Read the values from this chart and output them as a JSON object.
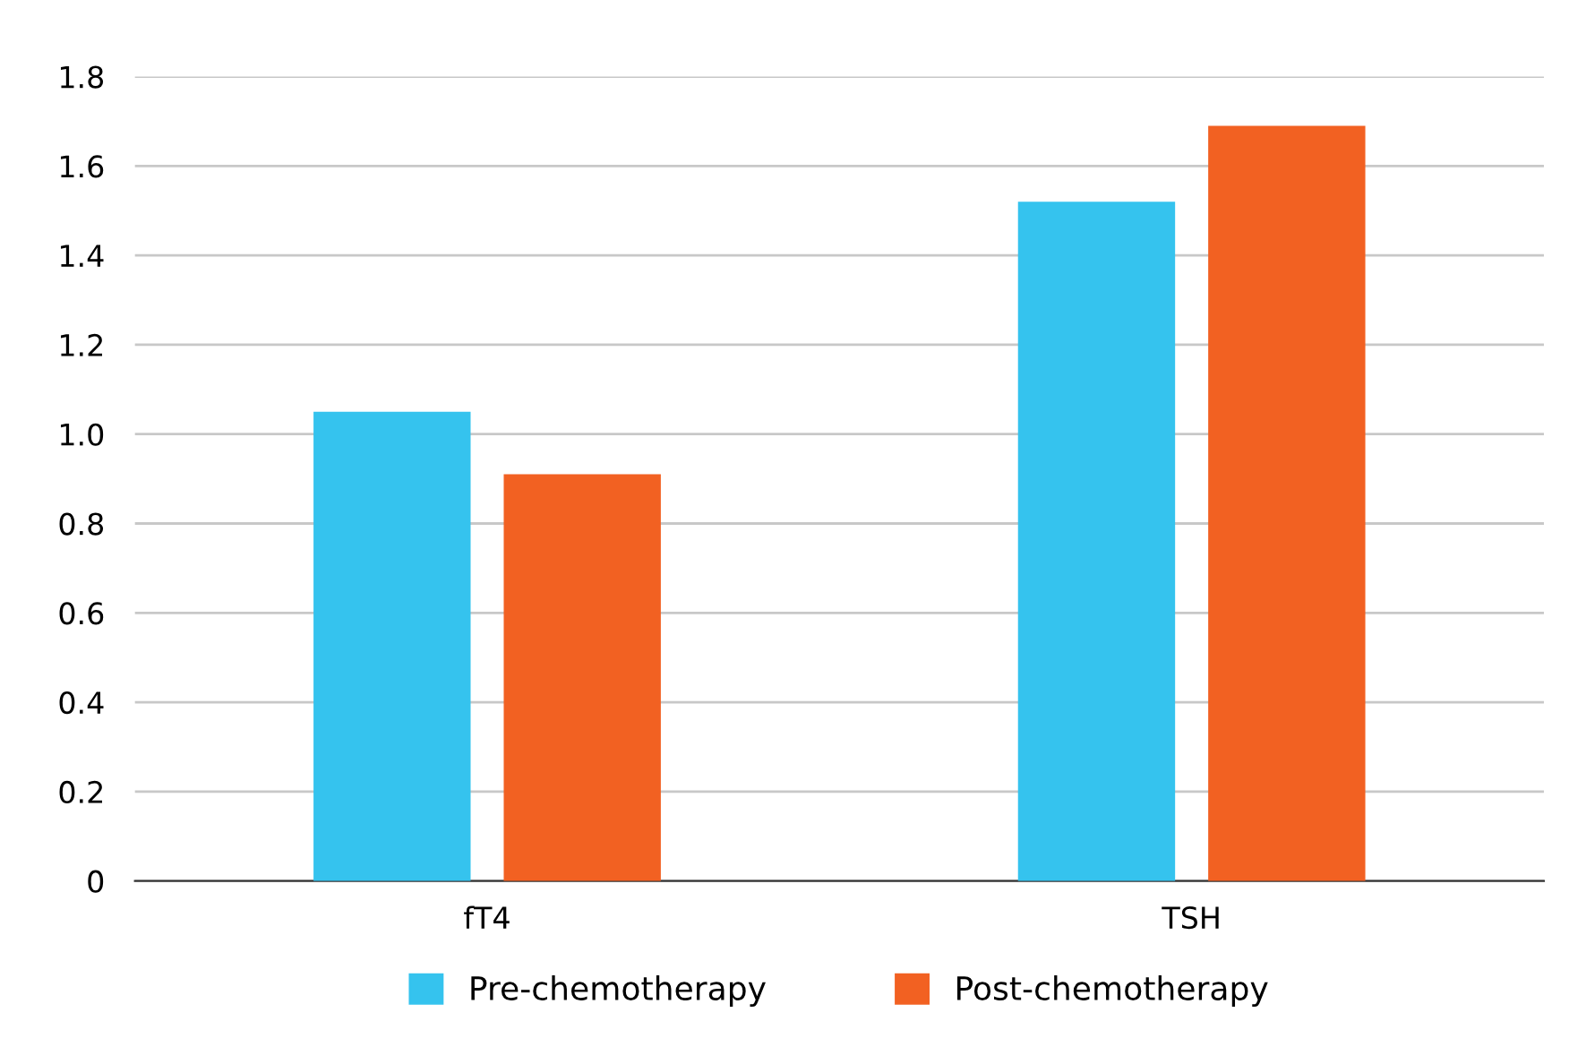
{
  "chart_data": {
    "type": "bar",
    "categories": [
      "fT4",
      "TSH"
    ],
    "series": [
      {
        "name": "Pre-chemotherapy",
        "color": "#35c3ee",
        "values": [
          1.05,
          1.52
        ]
      },
      {
        "name": "Post-chemotherapy",
        "color": "#f26122",
        "values": [
          0.91,
          1.69
        ]
      }
    ],
    "ylim": [
      0,
      1.8
    ],
    "yticks": [
      {
        "value": 0,
        "label": "0"
      },
      {
        "value": 0.2,
        "label": "0.2"
      },
      {
        "value": 0.4,
        "label": "0.4"
      },
      {
        "value": 0.6,
        "label": "0.6"
      },
      {
        "value": 0.8,
        "label": "0.8"
      },
      {
        "value": 1.0,
        "label": "1.0"
      },
      {
        "value": 1.2,
        "label": "1.2"
      },
      {
        "value": 1.4,
        "label": "1.4"
      },
      {
        "value": 1.6,
        "label": "1.6"
      },
      {
        "value": 1.8,
        "label": "1.8"
      }
    ],
    "grid": "y",
    "legend": "bottom"
  }
}
